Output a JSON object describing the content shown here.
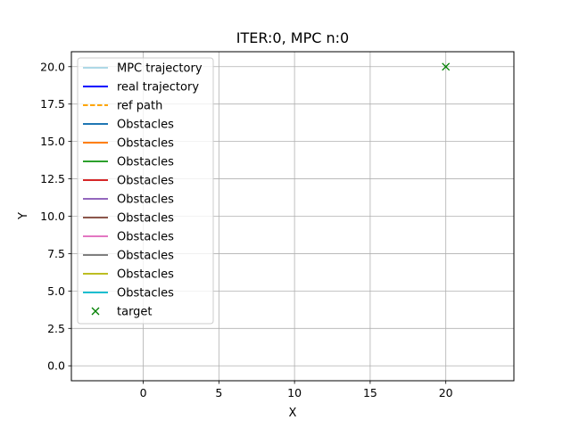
{
  "chart_data": {
    "type": "line",
    "title": "ITER:0, MPC n:0",
    "xlabel": "X",
    "ylabel": "Y",
    "xlim": [
      -4.75,
      24.5
    ],
    "ylim": [
      -1.0,
      21.0
    ],
    "grid": true,
    "x_ticks": [
      0,
      5,
      10,
      15,
      20
    ],
    "y_ticks": [
      0.0,
      2.5,
      5.0,
      7.5,
      10.0,
      12.5,
      15.0,
      17.5,
      20.0
    ],
    "x_tick_labels": [
      "0",
      "5",
      "10",
      "15",
      "20"
    ],
    "y_tick_labels": [
      "0.0",
      "2.5",
      "5.0",
      "7.5",
      "10.0",
      "12.5",
      "15.0",
      "17.5",
      "20.0"
    ],
    "legend_position": "upper-left",
    "series": [
      {
        "name": "MPC trajectory",
        "color": "#add8e6",
        "style": "solid",
        "x": [],
        "y": []
      },
      {
        "name": "real trajectory",
        "color": "#0000ff",
        "style": "solid",
        "x": [],
        "y": []
      },
      {
        "name": "ref path",
        "color": "#ffa500",
        "style": "dashed",
        "x": [],
        "y": []
      },
      {
        "name": "Obstacles",
        "color": "#1f77b4",
        "style": "solid",
        "x": [],
        "y": []
      },
      {
        "name": "Obstacles",
        "color": "#ff7f0e",
        "style": "solid",
        "x": [],
        "y": []
      },
      {
        "name": "Obstacles",
        "color": "#2ca02c",
        "style": "solid",
        "x": [],
        "y": []
      },
      {
        "name": "Obstacles",
        "color": "#d62728",
        "style": "solid",
        "x": [],
        "y": []
      },
      {
        "name": "Obstacles",
        "color": "#9467bd",
        "style": "solid",
        "x": [],
        "y": []
      },
      {
        "name": "Obstacles",
        "color": "#8c564b",
        "style": "solid",
        "x": [],
        "y": []
      },
      {
        "name": "Obstacles",
        "color": "#e377c2",
        "style": "solid",
        "x": [],
        "y": []
      },
      {
        "name": "Obstacles",
        "color": "#7f7f7f",
        "style": "solid",
        "x": [],
        "y": []
      },
      {
        "name": "Obstacles",
        "color": "#bcbd22",
        "style": "solid",
        "x": [],
        "y": []
      },
      {
        "name": "Obstacles",
        "color": "#17becf",
        "style": "solid",
        "x": [],
        "y": []
      },
      {
        "name": "target",
        "color": "#008000",
        "style": "marker-x",
        "x": [
          20
        ],
        "y": [
          20
        ]
      }
    ]
  }
}
